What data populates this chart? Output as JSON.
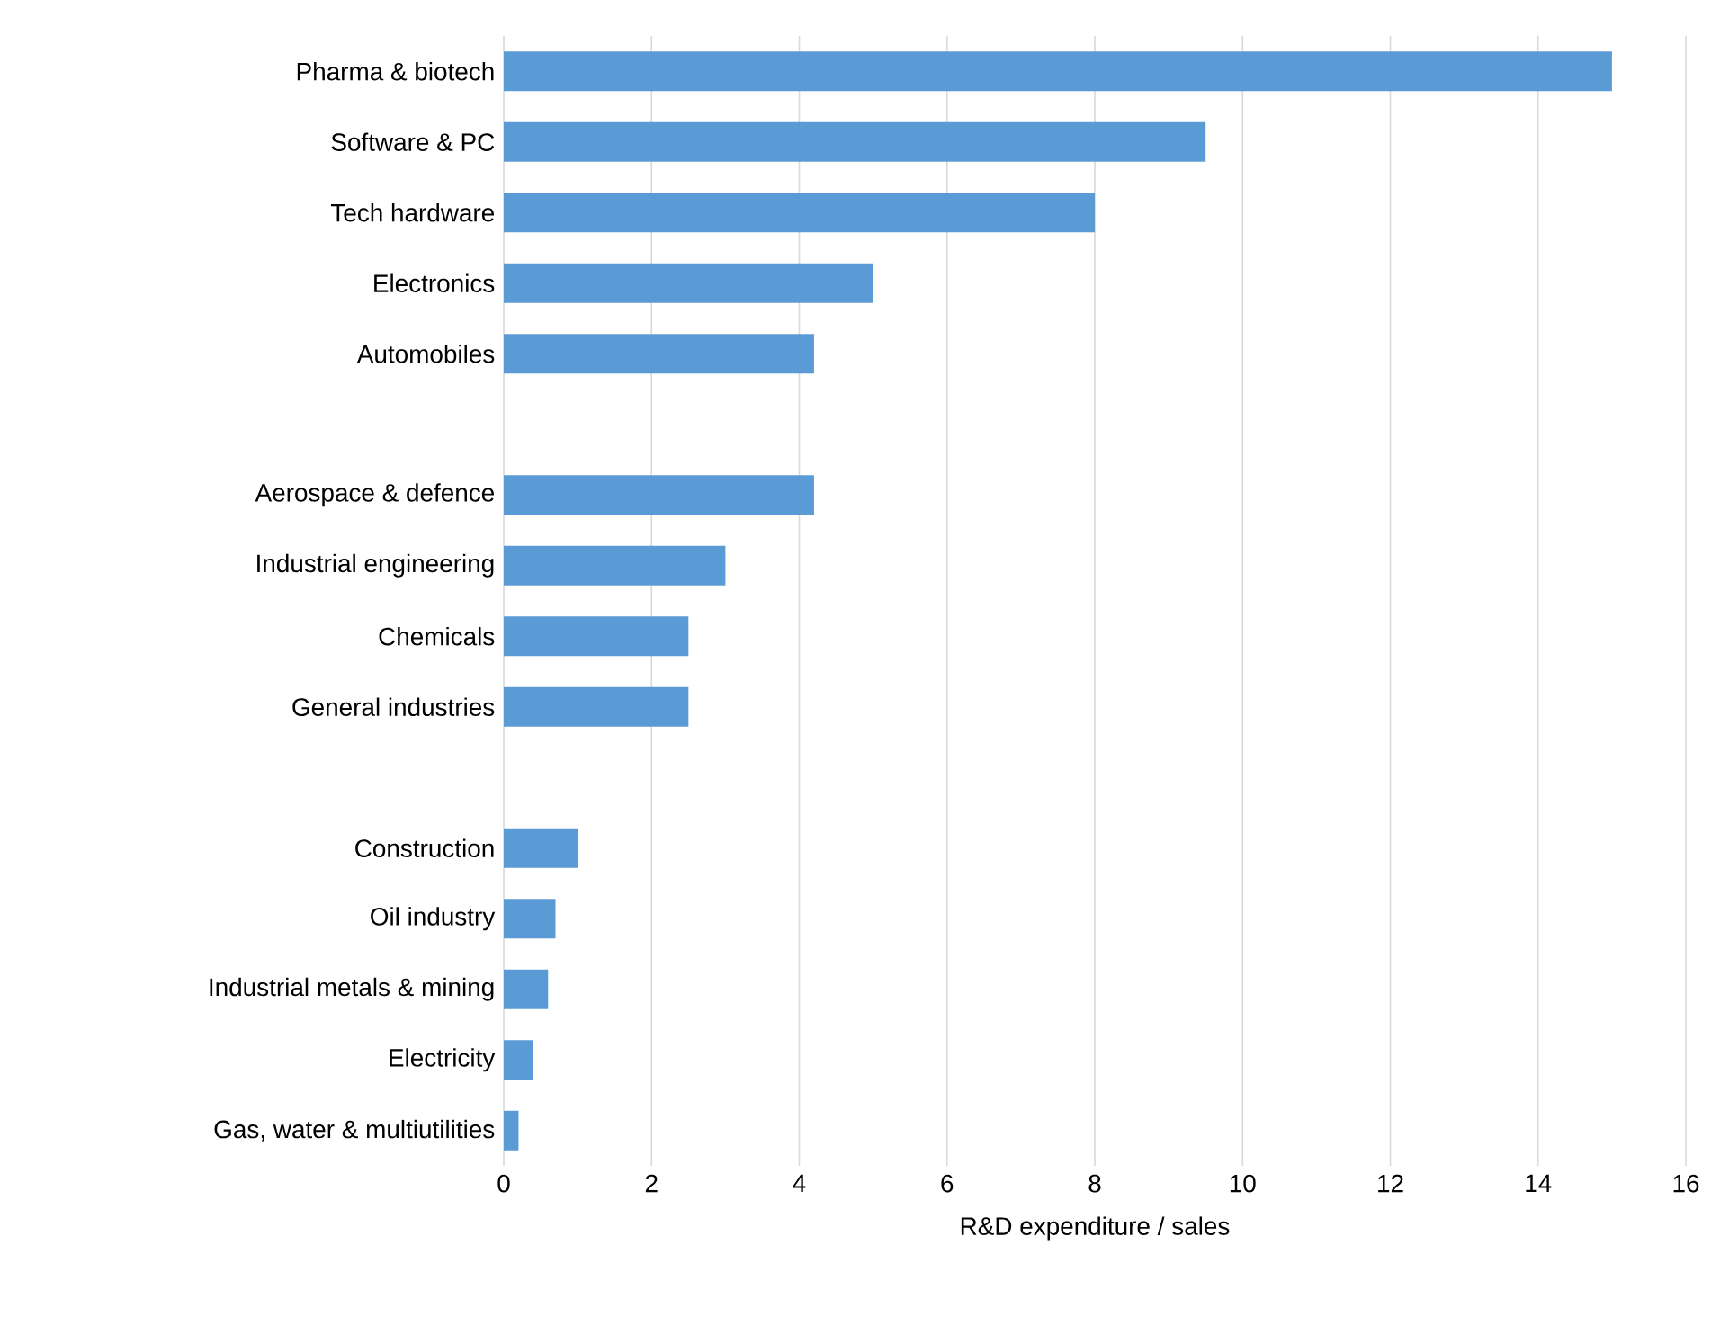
{
  "chart_data": {
    "type": "bar",
    "orientation": "horizontal",
    "xlabel": "R&D expenditure / sales",
    "categories": [
      "Pharma & biotech",
      "Software & PC",
      "Tech hardware",
      "Electronics",
      "Automobiles",
      null,
      "Aerospace & defence",
      "Industrial engineering",
      "Chemicals",
      "General industries",
      null,
      "Construction",
      "Oil industry",
      "Industrial metals & mining",
      "Electricity",
      "Gas, water & multiutilities"
    ],
    "values": [
      15,
      9.5,
      8,
      5,
      4.2,
      null,
      4.2,
      3,
      2.5,
      2.5,
      null,
      1,
      0.7,
      0.6,
      0.4,
      0.2
    ],
    "color": "#5b9bd5",
    "xlim": [
      0,
      16
    ],
    "xticks": [
      0,
      2,
      4,
      6,
      8,
      10,
      12,
      14,
      16
    ],
    "grid": "x"
  }
}
